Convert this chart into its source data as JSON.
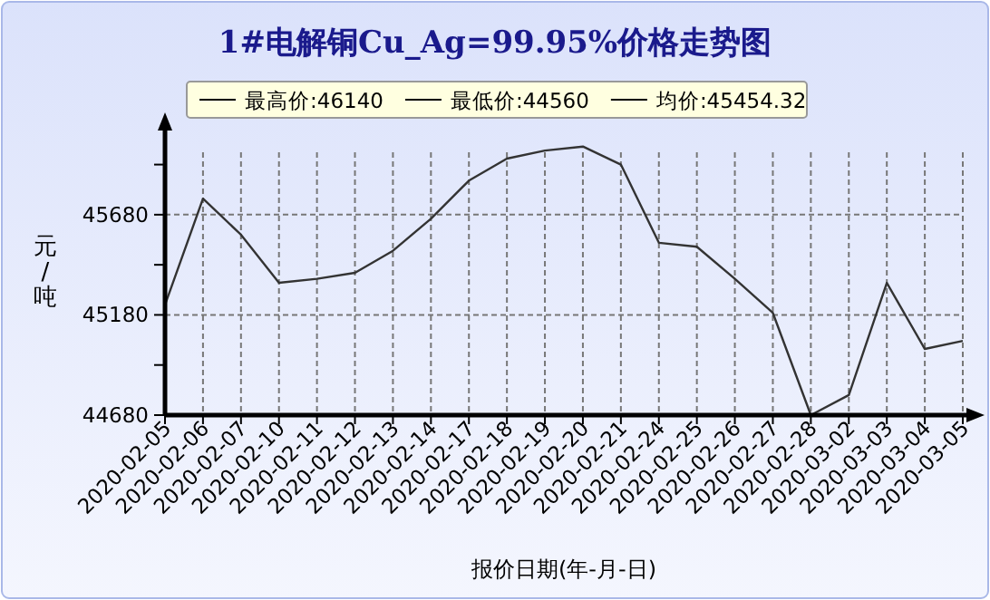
{
  "chart_data": {
    "type": "line",
    "title": "1#电解铜Cu_Ag=99.95%价格走势图",
    "xlabel": "报价日期(年-月-日)",
    "ylabel": "元/吨",
    "annotations": [
      "最高价:46140",
      "最低价:44560",
      "均价:45454.32"
    ],
    "categories": [
      "2020-02-05",
      "2020-02-06",
      "2020-02-07",
      "2020-02-10",
      "2020-02-11",
      "2020-02-12",
      "2020-02-13",
      "2020-02-14",
      "2020-02-17",
      "2020-02-18",
      "2020-02-19",
      "2020-02-20",
      "2020-02-21",
      "2020-02-24",
      "2020-02-25",
      "2020-02-26",
      "2020-02-27",
      "2020-02-28",
      "2020-03-02",
      "2020-03-03",
      "2020-03-04",
      "2020-03-05"
    ],
    "series": [
      {
        "color": "#333333",
        "values": [
          45230,
          45760,
          45580,
          45340,
          45360,
          45390,
          45500,
          45660,
          45850,
          45960,
          46000,
          46020,
          45930,
          45540,
          45520,
          45360,
          45190,
          44680,
          44780,
          45340,
          45010,
          45050
        ]
      }
    ],
    "ylim": [
      44680,
      46100
    ],
    "yticks": [
      44680,
      {
        "value": 44930,
        "label": null
      },
      45180,
      {
        "value": 45430,
        "label": null
      },
      45680,
      {
        "value": 45930,
        "label": null
      }
    ],
    "grid": true,
    "marker": "none",
    "line_style": "solid"
  }
}
